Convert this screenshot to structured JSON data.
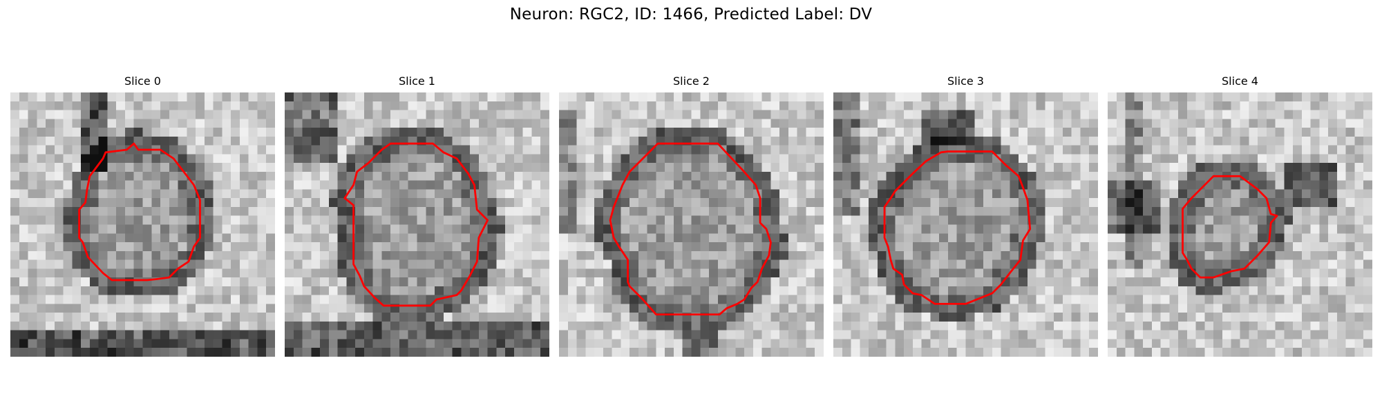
{
  "figure": {
    "title": "Neuron: RGC2, ID: 1466, Predicted Label: DV"
  },
  "panels": [
    {
      "title": "Slice 0"
    },
    {
      "title": "Slice 1"
    },
    {
      "title": "Slice 2"
    },
    {
      "title": "Slice 3"
    },
    {
      "title": "Slice 4"
    }
  ],
  "colors": {
    "contour": "#ff0000",
    "background": "#ffffff"
  }
}
